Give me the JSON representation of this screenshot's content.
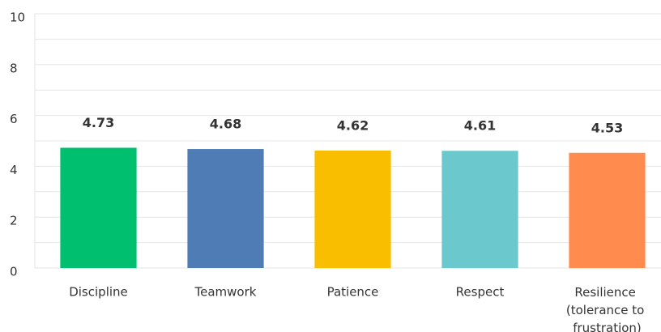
{
  "chart_data": {
    "type": "bar",
    "categories": [
      "Discipline",
      "Teamwork",
      "Patience",
      "Respect",
      "Resilience (tolerance to frustration)"
    ],
    "values": [
      4.73,
      4.68,
      4.62,
      4.61,
      4.53
    ],
    "colors": [
      "#00bf6f",
      "#507cb6",
      "#f9be00",
      "#6bc8cd",
      "#ff8b4f"
    ],
    "ylim": [
      0,
      10
    ],
    "yticks": [
      0,
      2,
      4,
      6,
      8,
      10
    ],
    "minor_yticks": [
      1,
      3,
      5,
      7,
      9
    ],
    "grid": true
  }
}
